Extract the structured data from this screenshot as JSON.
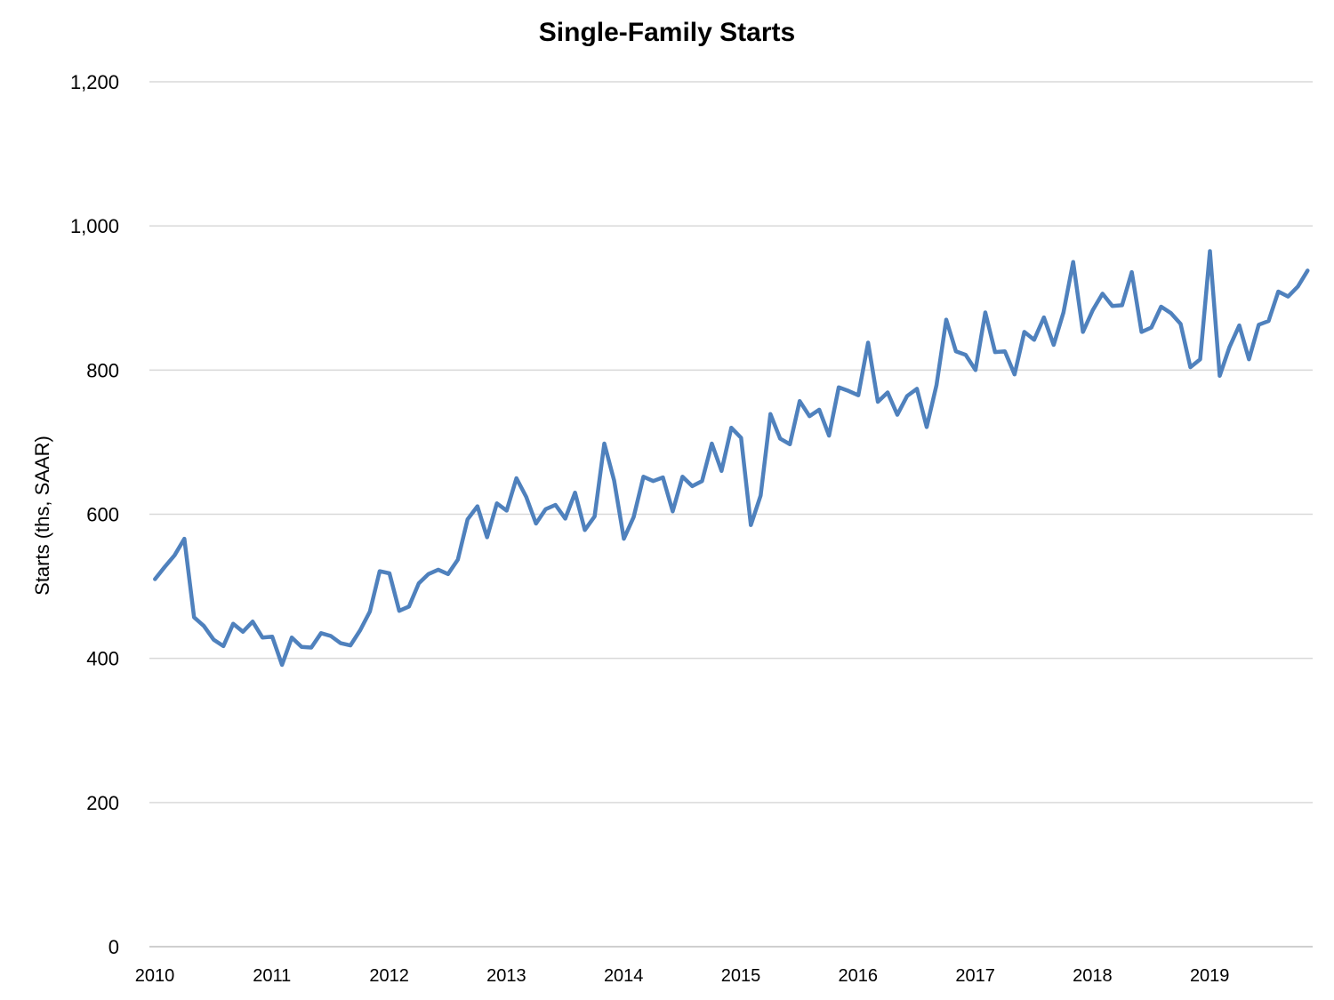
{
  "chart_data": {
    "type": "line",
    "title": "Single-Family Starts",
    "xlabel": "",
    "ylabel": "Starts (ths, SAAR)",
    "ylim": [
      0,
      1200
    ],
    "yticks": [
      0,
      200,
      400,
      600,
      800,
      1000,
      1200
    ],
    "ytick_labels": [
      "0",
      "200",
      "400",
      "600",
      "800",
      "1,000",
      "1,200"
    ],
    "xticks": [
      "2010",
      "2011",
      "2012",
      "2013",
      "2014",
      "2015",
      "2016",
      "2017",
      "2018",
      "2019"
    ],
    "grid": "horizontal",
    "legend": "none",
    "color": "#4f81bd",
    "series": [
      {
        "start": "2010-01",
        "frequency": "monthly",
        "values": [
          510,
          527,
          543,
          566,
          457,
          445,
          426,
          417,
          448,
          437,
          451,
          429,
          430,
          391,
          429,
          416,
          415,
          435,
          431,
          421,
          418,
          439,
          465,
          521,
          518,
          466,
          472,
          504,
          517,
          523,
          517,
          537,
          593,
          611,
          568,
          615,
          605,
          650,
          624,
          587,
          607,
          613,
          594,
          630,
          578,
          597,
          698,
          647,
          566,
          596,
          652,
          646,
          651,
          604,
          652,
          639,
          646,
          698,
          660,
          720,
          706,
          585,
          626,
          739,
          705,
          697,
          757,
          736,
          745,
          709,
          776,
          771,
          765,
          838,
          756,
          769,
          738,
          764,
          774,
          721,
          779,
          870,
          826,
          821,
          800,
          880,
          825,
          826,
          794,
          853,
          842,
          873,
          835,
          880,
          950,
          853,
          883,
          906,
          889,
          890,
          936,
          853,
          859,
          888,
          879,
          864,
          804,
          815,
          965,
          792,
          832,
          862,
          815,
          863,
          868,
          909,
          902,
          916,
          938
        ]
      }
    ]
  }
}
